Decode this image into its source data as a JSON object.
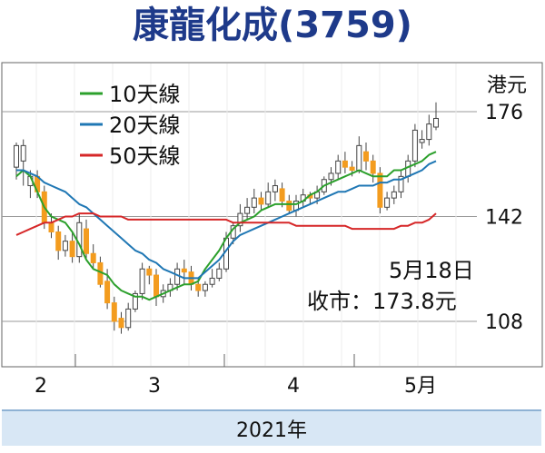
{
  "chart_data": {
    "type": "line",
    "title": "康龍化成(3759)",
    "y_unit": "港元",
    "ylim": [
      98,
      183
    ],
    "y_ticks": [
      176,
      142,
      108
    ],
    "x_ticks": [
      "2",
      "3",
      "4",
      "5月"
    ],
    "x_footer": "2021年",
    "grid": true,
    "legend_position": "top-left",
    "annotation": {
      "date": "5月18日",
      "close": "收市：173.8元"
    },
    "colors": {
      "ma10": "#2ca02c",
      "ma20": "#1f77b4",
      "ma50": "#d62728",
      "candle": "#f39c1f",
      "wick": "#444444"
    },
    "series": [
      {
        "name": "10天線",
        "color": "#2ca02c",
        "values": [
          155,
          157,
          155,
          150,
          145,
          142,
          141,
          140,
          137,
          133,
          128,
          125,
          124,
          123,
          120,
          118,
          117,
          116,
          116,
          115,
          116,
          117,
          118,
          119,
          120,
          120,
          121,
          125,
          128,
          131,
          135,
          138,
          140,
          141,
          142,
          144,
          145,
          146,
          146,
          146,
          146,
          147,
          149,
          150,
          152,
          153,
          154,
          155,
          156,
          157,
          156,
          155,
          155,
          155,
          157,
          157,
          158,
          159,
          160,
          162,
          163
        ]
      },
      {
        "name": "20天線",
        "color": "#1f77b4",
        "values": [
          157,
          157,
          156,
          155,
          153,
          152,
          151,
          150,
          148,
          146,
          145,
          143,
          141,
          139,
          137,
          135,
          133,
          131,
          130,
          128,
          127,
          125,
          124,
          123,
          122,
          122,
          122,
          124,
          126,
          128,
          131,
          134,
          136,
          137,
          138,
          139,
          140,
          141,
          142,
          143,
          144,
          145,
          146,
          147,
          148,
          149,
          150,
          150,
          151,
          152,
          152,
          152,
          153,
          153,
          154,
          154,
          155,
          156,
          157,
          159,
          160
        ]
      },
      {
        "name": "50天線",
        "color": "#d62728",
        "values": [
          136,
          137,
          138,
          139,
          140,
          140,
          141,
          142,
          142,
          143,
          143,
          143,
          142,
          142,
          142,
          142,
          141,
          141,
          141,
          141,
          141,
          141,
          141,
          141,
          141,
          141,
          141,
          141,
          141,
          141,
          141,
          140,
          140,
          140,
          140,
          140,
          140,
          140,
          140,
          140,
          139,
          139,
          139,
          139,
          139,
          139,
          139,
          139,
          138,
          138,
          138,
          138,
          138,
          138,
          138,
          139,
          139,
          140,
          140,
          141,
          143
        ]
      }
    ],
    "candles": [
      [
        158,
        165,
        154,
        166
      ],
      [
        160,
        165,
        152,
        167
      ],
      [
        152,
        155,
        148,
        157
      ],
      [
        155,
        150,
        148,
        157
      ],
      [
        150,
        140,
        138,
        152
      ],
      [
        140,
        137,
        135,
        143
      ],
      [
        137,
        131,
        128,
        139
      ],
      [
        131,
        134,
        129,
        136
      ],
      [
        134,
        129,
        127,
        137
      ],
      [
        129,
        140,
        127,
        143
      ],
      [
        138,
        130,
        128,
        141
      ],
      [
        130,
        127,
        125,
        133
      ],
      [
        127,
        120,
        119,
        129
      ],
      [
        121,
        114,
        112,
        125
      ],
      [
        114,
        108,
        105,
        116
      ],
      [
        109,
        106,
        104,
        111
      ],
      [
        106,
        112,
        105,
        114
      ],
      [
        112,
        117,
        111,
        118
      ],
      [
        117,
        125,
        115,
        127
      ],
      [
        125,
        123,
        120,
        126
      ],
      [
        123,
        116,
        113,
        125
      ],
      [
        116,
        118,
        114,
        120
      ],
      [
        118,
        120,
        116,
        122
      ],
      [
        120,
        125,
        118,
        127
      ],
      [
        125,
        124,
        120,
        128
      ],
      [
        124,
        120,
        118,
        126
      ],
      [
        120,
        118,
        116,
        122
      ],
      [
        118,
        120,
        116,
        121
      ],
      [
        120,
        122,
        119,
        125
      ],
      [
        122,
        125,
        121,
        127
      ],
      [
        125,
        135,
        124,
        137
      ],
      [
        135,
        139,
        133,
        140
      ],
      [
        139,
        143,
        137,
        146
      ],
      [
        143,
        145,
        141,
        148
      ],
      [
        145,
        148,
        143,
        151
      ],
      [
        148,
        146,
        144,
        150
      ],
      [
        146,
        150,
        145,
        153
      ],
      [
        150,
        152,
        147,
        154
      ],
      [
        151,
        147,
        145,
        153
      ],
      [
        147,
        144,
        143,
        149
      ],
      [
        144,
        147,
        142,
        149
      ],
      [
        147,
        149,
        145,
        151
      ],
      [
        149,
        148,
        146,
        150
      ],
      [
        148,
        150,
        146,
        152
      ],
      [
        150,
        154,
        149,
        155
      ],
      [
        154,
        156,
        152,
        158
      ],
      [
        156,
        160,
        154,
        162
      ],
      [
        160,
        158,
        156,
        163
      ],
      [
        158,
        157,
        155,
        160
      ],
      [
        157,
        165,
        156,
        168
      ],
      [
        163,
        160,
        157,
        166
      ],
      [
        160,
        156,
        153,
        162
      ],
      [
        156,
        145,
        143,
        158
      ],
      [
        145,
        148,
        144,
        150
      ],
      [
        148,
        150,
        146,
        152
      ],
      [
        150,
        155,
        148,
        157
      ],
      [
        155,
        160,
        153,
        162
      ],
      [
        160,
        170,
        158,
        172
      ],
      [
        166,
        167,
        164,
        170
      ],
      [
        167,
        172,
        165,
        175
      ],
      [
        171,
        173.8,
        170,
        179
      ]
    ]
  }
}
